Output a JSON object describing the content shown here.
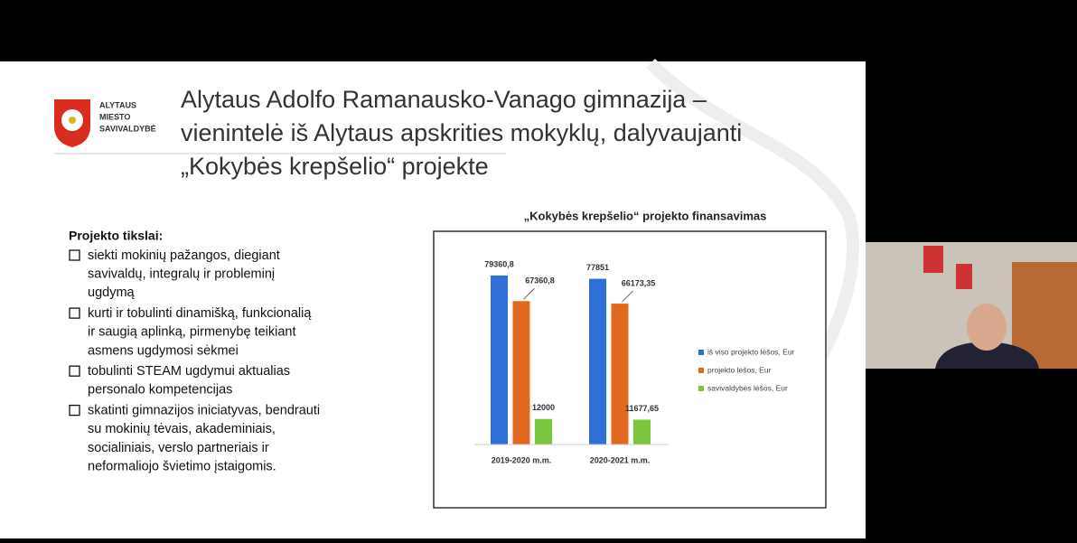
{
  "slide": {
    "logo": [
      "ALYTAUS",
      "MIESTO",
      "SAVIVALDYBĖ"
    ],
    "title": [
      "Alytaus Adolfo Ramanausko-Vanago gimnazija –",
      "vienintelė iš Alytaus apskrities mokyklų, dalyvaujanti",
      "„Kokybės krepšelio“ projekte"
    ],
    "goals_title": "Projekto tikslai:",
    "goals": [
      [
        "siekti mokinių pažangos, diegiant",
        "savivaldų, integralų ir probleminį",
        "ugdymą"
      ],
      [
        "kurti ir tobulinti dinamišką, funkcionalią",
        "ir saugią aplinką, pirmenybę teikiant",
        "asmens ugdymosi sėkmei"
      ],
      [
        "tobulinti STEAM ugdymui aktualias",
        "personalo kompetencijas"
      ],
      [
        "skatinti gimnazijos iniciatyvas, bendrauti",
        "su mokinių tėvais, akademiniais,",
        "socialiniais, verslo partneriais ir",
        "neformaliojo švietimo įstaigomis."
      ]
    ]
  },
  "chart_data": {
    "type": "bar",
    "title": "„Kokybės krepšelio“ projekto finansavimas",
    "categories": [
      "2019-2020 m.m.",
      "2020-2021 m.m."
    ],
    "series": [
      {
        "name": "iš viso projekto lėšos, Eur",
        "color": "#2f6fd6",
        "values": [
          79360.8,
          77851
        ],
        "value_labels": [
          "79360,8",
          "77851"
        ]
      },
      {
        "name": "projekto lėšos, Eur",
        "color": "#e0691f",
        "values": [
          67360.8,
          66173.35
        ],
        "value_labels": [
          "67360,8",
          "66173,35"
        ]
      },
      {
        "name": "savivaldybės lėšos, Eur",
        "color": "#7cc63c",
        "values": [
          12000,
          11677.65
        ],
        "value_labels": [
          "12000",
          "11677,65"
        ]
      }
    ],
    "legend": "right"
  }
}
